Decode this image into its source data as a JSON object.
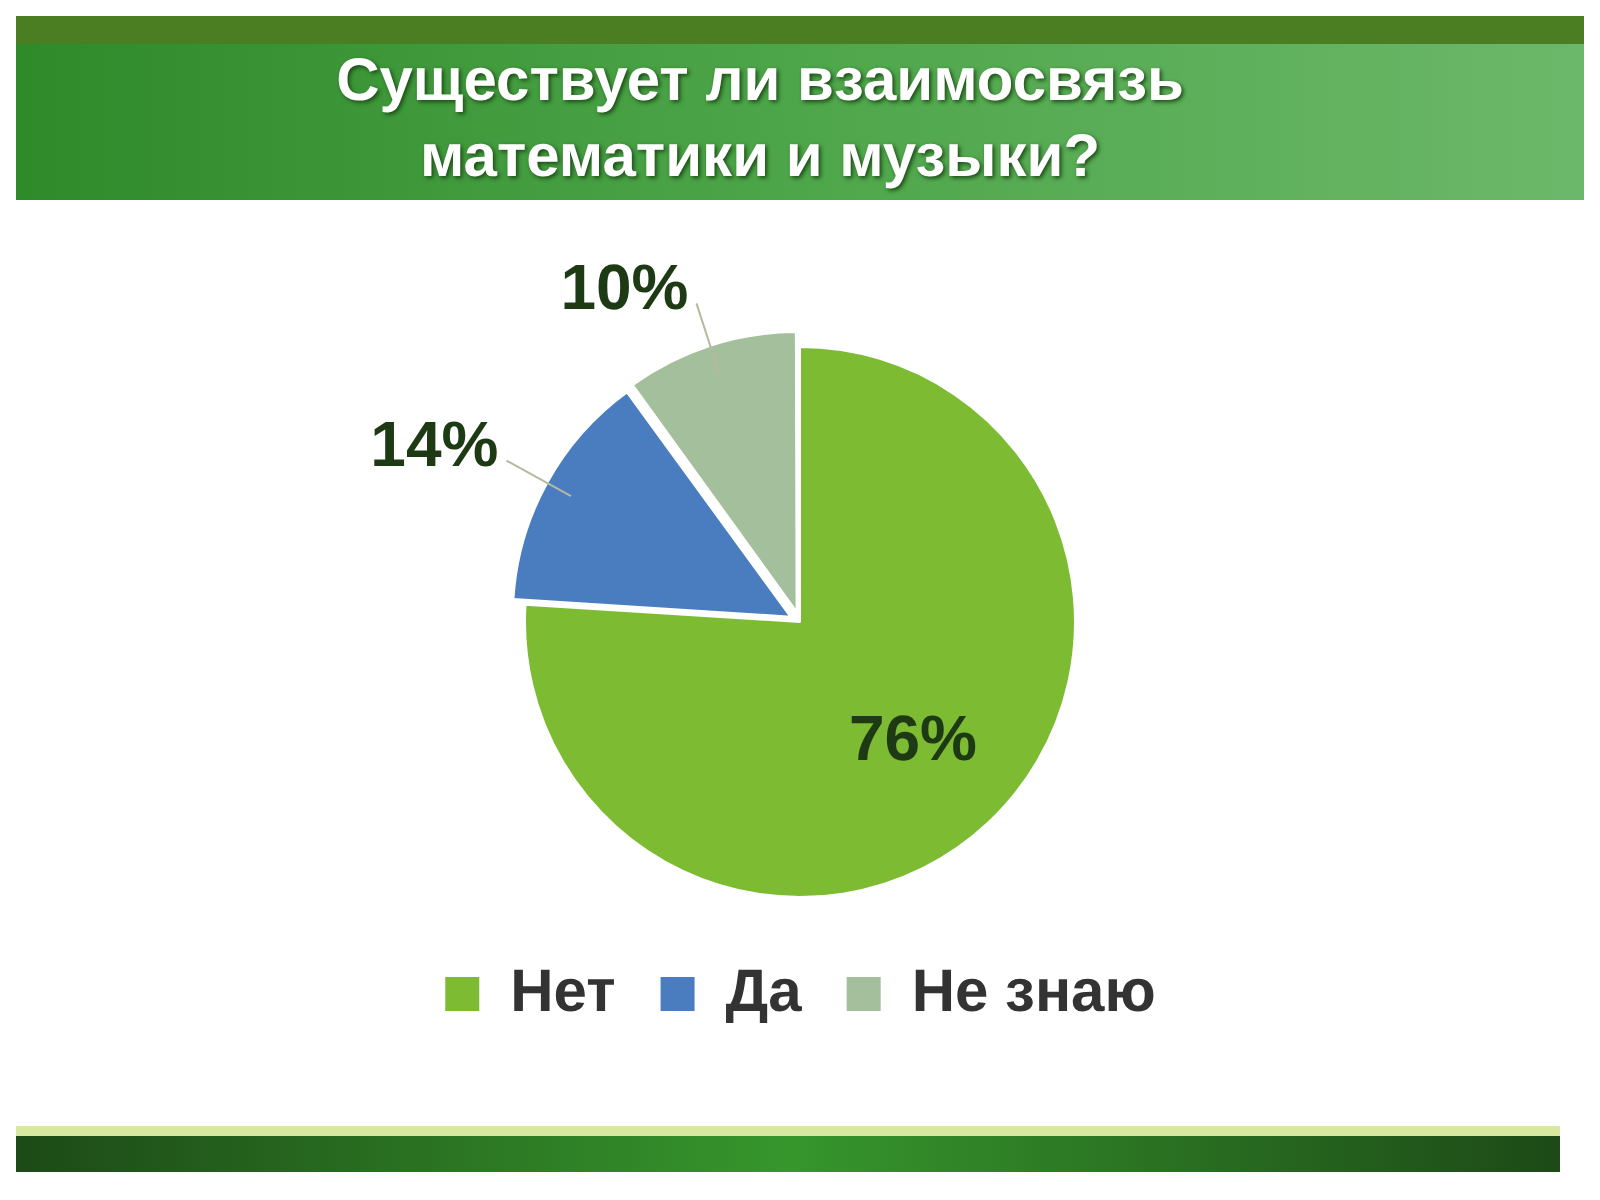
{
  "chart_data": {
    "type": "pie",
    "title": "Существует ли взаимосвязь математики и музыки?",
    "categories": [
      "Нет",
      "Да",
      "Не знаю"
    ],
    "values": [
      76,
      14,
      10
    ],
    "colors": [
      "#7cbb32",
      "#4a7dc0",
      "#a3bf9c"
    ],
    "value_labels": [
      "76%",
      "14%",
      "10%"
    ],
    "legend": "bottom"
  }
}
